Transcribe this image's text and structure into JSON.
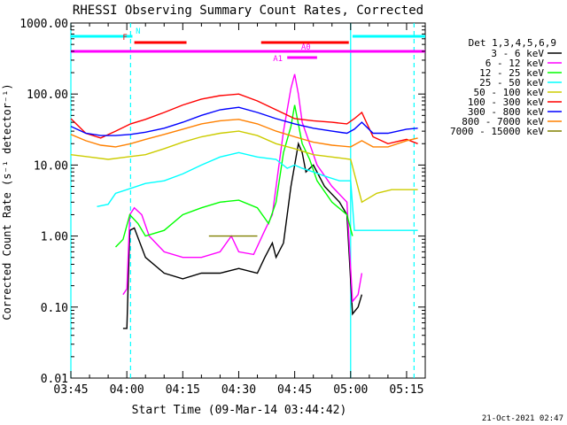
{
  "chart_data": {
    "type": "line",
    "title": "RHESSI Observing Summary Count Rates, Corrected",
    "xlabel": "Start Time (09-Mar-14 03:44:42)",
    "ylabel": "Corrected Count Rate (s⁻¹ detector⁻¹)",
    "y_scale": "log",
    "ylim": [
      0.01,
      1000
    ],
    "xlim_minutes": [
      0,
      95
    ],
    "x_ticks": [
      {
        "m": 0,
        "label": "03:45"
      },
      {
        "m": 15,
        "label": "04:00"
      },
      {
        "m": 30,
        "label": "04:15"
      },
      {
        "m": 45,
        "label": "04:30"
      },
      {
        "m": 60,
        "label": "04:45"
      },
      {
        "m": 75,
        "label": "05:00"
      },
      {
        "m": 90,
        "label": "05:15"
      }
    ],
    "y_ticks": [
      {
        "v": 0.01,
        "label": "0.01"
      },
      {
        "v": 0.1,
        "label": "0.10"
      },
      {
        "v": 1,
        "label": "1.00"
      },
      {
        "v": 10,
        "label": "10.00"
      },
      {
        "v": 100,
        "label": "100.00"
      },
      {
        "v": 1000,
        "label": "1000.00"
      }
    ],
    "legend_title": "Det 1,3,4,5,6,9",
    "legend_placement": "right",
    "series": [
      {
        "name": "3 - 6 keV",
        "color": "#000000",
        "points": [
          [
            14,
            0.05
          ],
          [
            15,
            0.05
          ],
          [
            15.8,
            1.2
          ],
          [
            17,
            1.3
          ],
          [
            20,
            0.5
          ],
          [
            25,
            0.3
          ],
          [
            30,
            0.25
          ],
          [
            35,
            0.3
          ],
          [
            40,
            0.3
          ],
          [
            45,
            0.35
          ],
          [
            50,
            0.3
          ],
          [
            52,
            0.5
          ],
          [
            54,
            0.8
          ],
          [
            55,
            0.5
          ],
          [
            57,
            0.8
          ],
          [
            59,
            5
          ],
          [
            61,
            20
          ],
          [
            62,
            15
          ],
          [
            63,
            8
          ],
          [
            65,
            10
          ],
          [
            68,
            5
          ],
          [
            72,
            3
          ],
          [
            74,
            2
          ],
          [
            75.5,
            0.08
          ],
          [
            77,
            0.1
          ],
          [
            78,
            0.15
          ]
        ]
      },
      {
        "name": "6 - 12 keV",
        "color": "#ff00ff",
        "points": [
          [
            14,
            0.15
          ],
          [
            15,
            0.18
          ],
          [
            15.8,
            2
          ],
          [
            17,
            2.5
          ],
          [
            19,
            2
          ],
          [
            21,
            1
          ],
          [
            25,
            0.6
          ],
          [
            30,
            0.5
          ],
          [
            35,
            0.5
          ],
          [
            40,
            0.6
          ],
          [
            43,
            1
          ],
          [
            45,
            0.6
          ],
          [
            49,
            0.55
          ],
          [
            52,
            1.2
          ],
          [
            54,
            2
          ],
          [
            57,
            30
          ],
          [
            59,
            120
          ],
          [
            60,
            190
          ],
          [
            61,
            100
          ],
          [
            62,
            40
          ],
          [
            64,
            20
          ],
          [
            66,
            10
          ],
          [
            70,
            5
          ],
          [
            74,
            3
          ],
          [
            75.5,
            0.12
          ],
          [
            77,
            0.15
          ],
          [
            78,
            0.3
          ]
        ]
      },
      {
        "name": "12 - 25 keV",
        "color": "#00ff00",
        "points": [
          [
            12,
            0.7
          ],
          [
            14,
            0.9
          ],
          [
            15.8,
            2
          ],
          [
            18,
            1.5
          ],
          [
            20,
            1
          ],
          [
            25,
            1.2
          ],
          [
            30,
            2
          ],
          [
            35,
            2.5
          ],
          [
            40,
            3
          ],
          [
            45,
            3.2
          ],
          [
            50,
            2.5
          ],
          [
            53,
            1.5
          ],
          [
            55,
            3
          ],
          [
            57,
            15
          ],
          [
            59,
            35
          ],
          [
            60,
            70
          ],
          [
            62,
            20
          ],
          [
            64,
            12
          ],
          [
            66,
            6
          ],
          [
            70,
            3
          ],
          [
            74,
            2
          ],
          [
            75.5,
            1
          ]
        ]
      },
      {
        "name": "25 - 50 keV",
        "color": "#00ffff",
        "points": [
          [
            7,
            2.6
          ],
          [
            10,
            2.8
          ],
          [
            12,
            4
          ],
          [
            15,
            4.5
          ],
          [
            20,
            5.5
          ],
          [
            25,
            6
          ],
          [
            30,
            7.5
          ],
          [
            35,
            10
          ],
          [
            40,
            13
          ],
          [
            45,
            15
          ],
          [
            50,
            13
          ],
          [
            55,
            12
          ],
          [
            58,
            9
          ],
          [
            60,
            10
          ],
          [
            62,
            9
          ],
          [
            65,
            8
          ],
          [
            68,
            7
          ],
          [
            72,
            6
          ],
          [
            75,
            6
          ],
          [
            76,
            1.2
          ],
          [
            80,
            1.2
          ],
          [
            82,
            1.2
          ],
          [
            93,
            1.2
          ]
        ]
      },
      {
        "name": "50 - 100 keV",
        "color": "#cccc00",
        "points": [
          [
            0,
            14
          ],
          [
            5,
            13
          ],
          [
            10,
            12
          ],
          [
            15,
            13
          ],
          [
            20,
            14
          ],
          [
            25,
            17
          ],
          [
            30,
            21
          ],
          [
            35,
            25
          ],
          [
            40,
            28
          ],
          [
            45,
            30
          ],
          [
            50,
            26
          ],
          [
            55,
            20
          ],
          [
            60,
            17
          ],
          [
            65,
            14
          ],
          [
            70,
            13
          ],
          [
            75,
            12
          ],
          [
            78,
            3
          ],
          [
            82,
            4
          ],
          [
            86,
            4.5
          ],
          [
            90,
            4.5
          ],
          [
            93,
            4.5
          ]
        ]
      },
      {
        "name": "100 - 300 keV",
        "color": "#ff0000",
        "points": [
          [
            0,
            45
          ],
          [
            4,
            28
          ],
          [
            8,
            24
          ],
          [
            12,
            30
          ],
          [
            16,
            38
          ],
          [
            20,
            44
          ],
          [
            25,
            55
          ],
          [
            30,
            70
          ],
          [
            35,
            85
          ],
          [
            40,
            95
          ],
          [
            45,
            100
          ],
          [
            50,
            80
          ],
          [
            55,
            60
          ],
          [
            60,
            45
          ],
          [
            65,
            42
          ],
          [
            70,
            40
          ],
          [
            74,
            38
          ],
          [
            76,
            45
          ],
          [
            78,
            55
          ],
          [
            81,
            25
          ],
          [
            85,
            20
          ],
          [
            90,
            23
          ],
          [
            93,
            20
          ]
        ]
      },
      {
        "name": "300 - 800 keV",
        "color": "#0000ff",
        "points": [
          [
            0,
            35
          ],
          [
            4,
            28
          ],
          [
            8,
            26
          ],
          [
            12,
            26
          ],
          [
            16,
            27
          ],
          [
            20,
            29
          ],
          [
            25,
            33
          ],
          [
            30,
            40
          ],
          [
            35,
            50
          ],
          [
            40,
            60
          ],
          [
            45,
            65
          ],
          [
            50,
            55
          ],
          [
            55,
            45
          ],
          [
            60,
            38
          ],
          [
            65,
            33
          ],
          [
            70,
            30
          ],
          [
            74,
            28
          ],
          [
            76,
            32
          ],
          [
            78,
            40
          ],
          [
            81,
            28
          ],
          [
            85,
            28
          ],
          [
            90,
            32
          ],
          [
            93,
            33
          ]
        ]
      },
      {
        "name": "800 - 7000 keV",
        "color": "#ff8000",
        "points": [
          [
            0,
            27
          ],
          [
            4,
            22
          ],
          [
            8,
            19
          ],
          [
            12,
            18
          ],
          [
            16,
            20
          ],
          [
            20,
            23
          ],
          [
            25,
            27
          ],
          [
            30,
            32
          ],
          [
            35,
            38
          ],
          [
            40,
            42
          ],
          [
            45,
            44
          ],
          [
            50,
            38
          ],
          [
            55,
            30
          ],
          [
            60,
            25
          ],
          [
            65,
            21
          ],
          [
            70,
            19
          ],
          [
            75,
            18
          ],
          [
            78,
            22
          ],
          [
            81,
            18
          ],
          [
            85,
            18
          ],
          [
            90,
            22
          ],
          [
            93,
            24
          ]
        ]
      },
      {
        "name": "7000 - 15000 keV",
        "color": "#808000",
        "points": [
          [
            37,
            1.0
          ],
          [
            38,
            1.0
          ],
          [
            39,
            1.0
          ],
          [
            40,
            1.0
          ],
          [
            41,
            1.0
          ],
          [
            42,
            1.0
          ],
          [
            43,
            1.0
          ],
          [
            44,
            1.0
          ],
          [
            45,
            1.0
          ],
          [
            46,
            1.0
          ],
          [
            47,
            1.0
          ],
          [
            48,
            1.0
          ],
          [
            49,
            1.0
          ],
          [
            50,
            1.0
          ]
        ]
      }
    ],
    "state_bars": [
      {
        "label": "N",
        "color": "#00ffff",
        "segments": [
          [
            0,
            16.5
          ],
          [
            75.5,
            95
          ]
        ],
        "level": 1
      },
      {
        "label": "F",
        "color": "#ff0000",
        "segments": [
          [
            17,
            31
          ],
          [
            51,
            74.5
          ]
        ],
        "level": 2
      },
      {
        "label": "A0",
        "color": "#ff00ff",
        "segments": [
          [
            0,
            95
          ]
        ],
        "level": 3
      },
      {
        "label": "A1",
        "color": "#ff00ff",
        "segments": [
          [
            58,
            66
          ]
        ],
        "level": 4
      }
    ],
    "vlines": [
      {
        "m": 0,
        "color": "#00ffff",
        "style": "solid"
      },
      {
        "m": 16,
        "color": "#00ffff",
        "style": "dashed"
      },
      {
        "m": 75,
        "color": "#00ffff",
        "style": "solid"
      },
      {
        "m": 92,
        "color": "#00ffff",
        "style": "dashed"
      }
    ]
  },
  "footer_timestamp": "21-Oct-2021 02:47"
}
